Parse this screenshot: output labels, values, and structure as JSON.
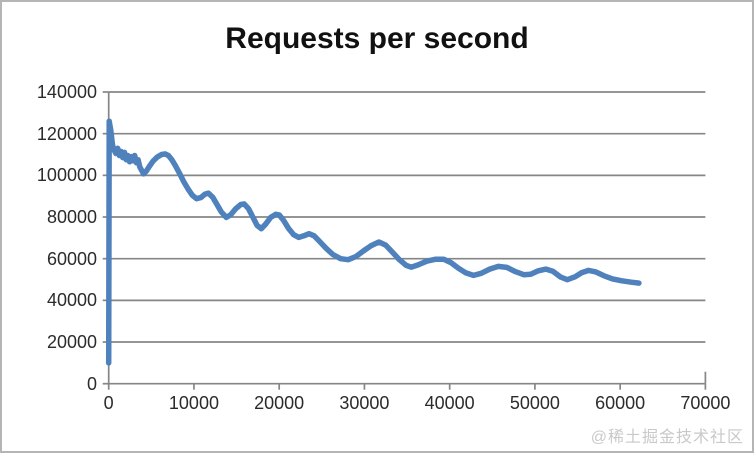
{
  "frame": {
    "background_color": "#ffffff",
    "border_color": "#b5b5b5"
  },
  "watermark": {
    "text": "@稀土掘金技术社区",
    "color": "#c9c9c9"
  },
  "chart_data": {
    "type": "line",
    "title": "Requests per second",
    "xlabel": "",
    "ylabel": "",
    "xlim": [
      0,
      70000
    ],
    "ylim": [
      0,
      140000
    ],
    "x_ticks": [
      0,
      10000,
      20000,
      30000,
      40000,
      50000,
      60000,
      70000
    ],
    "y_ticks": [
      0,
      20000,
      40000,
      60000,
      80000,
      100000,
      120000,
      140000
    ],
    "grid": "horizontal",
    "grid_color": "#868686",
    "axis_color": "#868686",
    "legend": "none",
    "series": [
      {
        "name": "Requests per second",
        "color": "#4F81BD",
        "stroke_width": 5.5,
        "points": [
          [
            0,
            10000
          ],
          [
            60,
            126000
          ],
          [
            250,
            121500
          ],
          [
            450,
            114500
          ],
          [
            650,
            112000
          ],
          [
            850,
            110500
          ],
          [
            1050,
            113000
          ],
          [
            1250,
            109500
          ],
          [
            1450,
            111500
          ],
          [
            1650,
            108500
          ],
          [
            1850,
            111000
          ],
          [
            2050,
            107500
          ],
          [
            2250,
            109500
          ],
          [
            2450,
            106500
          ],
          [
            2650,
            109000
          ],
          [
            2850,
            107000
          ],
          [
            3050,
            109500
          ],
          [
            3250,
            106000
          ],
          [
            3450,
            107500
          ],
          [
            3650,
            104000
          ],
          [
            3850,
            102500
          ],
          [
            4100,
            100700
          ],
          [
            4400,
            102000
          ],
          [
            4800,
            104500
          ],
          [
            5200,
            106800
          ],
          [
            5700,
            108800
          ],
          [
            6200,
            110000
          ],
          [
            6600,
            110300
          ],
          [
            7000,
            109500
          ],
          [
            7400,
            107500
          ],
          [
            7800,
            104800
          ],
          [
            8300,
            101000
          ],
          [
            8800,
            97000
          ],
          [
            9300,
            93500
          ],
          [
            9800,
            90500
          ],
          [
            10300,
            88800
          ],
          [
            10800,
            89300
          ],
          [
            11300,
            91000
          ],
          [
            11700,
            91500
          ],
          [
            12200,
            89500
          ],
          [
            12700,
            86000
          ],
          [
            13200,
            82500
          ],
          [
            13800,
            79800
          ],
          [
            14300,
            81000
          ],
          [
            14900,
            84000
          ],
          [
            15500,
            86000
          ],
          [
            15900,
            86300
          ],
          [
            16400,
            84000
          ],
          [
            16900,
            80000
          ],
          [
            17400,
            76000
          ],
          [
            17900,
            74400
          ],
          [
            18400,
            76500
          ],
          [
            19000,
            79800
          ],
          [
            19600,
            81300
          ],
          [
            20000,
            81000
          ],
          [
            20500,
            78500
          ],
          [
            21100,
            74500
          ],
          [
            21700,
            71500
          ],
          [
            22300,
            70200
          ],
          [
            22900,
            71000
          ],
          [
            23500,
            72000
          ],
          [
            24100,
            71000
          ],
          [
            24700,
            68500
          ],
          [
            25500,
            65000
          ],
          [
            26300,
            62000
          ],
          [
            27200,
            60000
          ],
          [
            28100,
            59500
          ],
          [
            29000,
            61000
          ],
          [
            29900,
            63800
          ],
          [
            30800,
            66300
          ],
          [
            31700,
            68000
          ],
          [
            32500,
            66500
          ],
          [
            33300,
            63000
          ],
          [
            34100,
            59500
          ],
          [
            34900,
            56800
          ],
          [
            35500,
            55900
          ],
          [
            36300,
            57000
          ],
          [
            37300,
            58800
          ],
          [
            38300,
            59700
          ],
          [
            39300,
            59700
          ],
          [
            40200,
            58000
          ],
          [
            41000,
            55500
          ],
          [
            41900,
            53200
          ],
          [
            42800,
            52000
          ],
          [
            43700,
            53000
          ],
          [
            44700,
            55000
          ],
          [
            45700,
            56300
          ],
          [
            46700,
            55800
          ],
          [
            47700,
            53800
          ],
          [
            48700,
            52300
          ],
          [
            49500,
            52500
          ],
          [
            50400,
            54200
          ],
          [
            51300,
            55000
          ],
          [
            52100,
            54000
          ],
          [
            53000,
            51200
          ],
          [
            53800,
            49900
          ],
          [
            54700,
            51300
          ],
          [
            55500,
            53300
          ],
          [
            56300,
            54400
          ],
          [
            57100,
            53700
          ],
          [
            58100,
            51800
          ],
          [
            59100,
            50300
          ],
          [
            60200,
            49400
          ],
          [
            61300,
            48700
          ],
          [
            62200,
            48300
          ]
        ]
      }
    ]
  }
}
